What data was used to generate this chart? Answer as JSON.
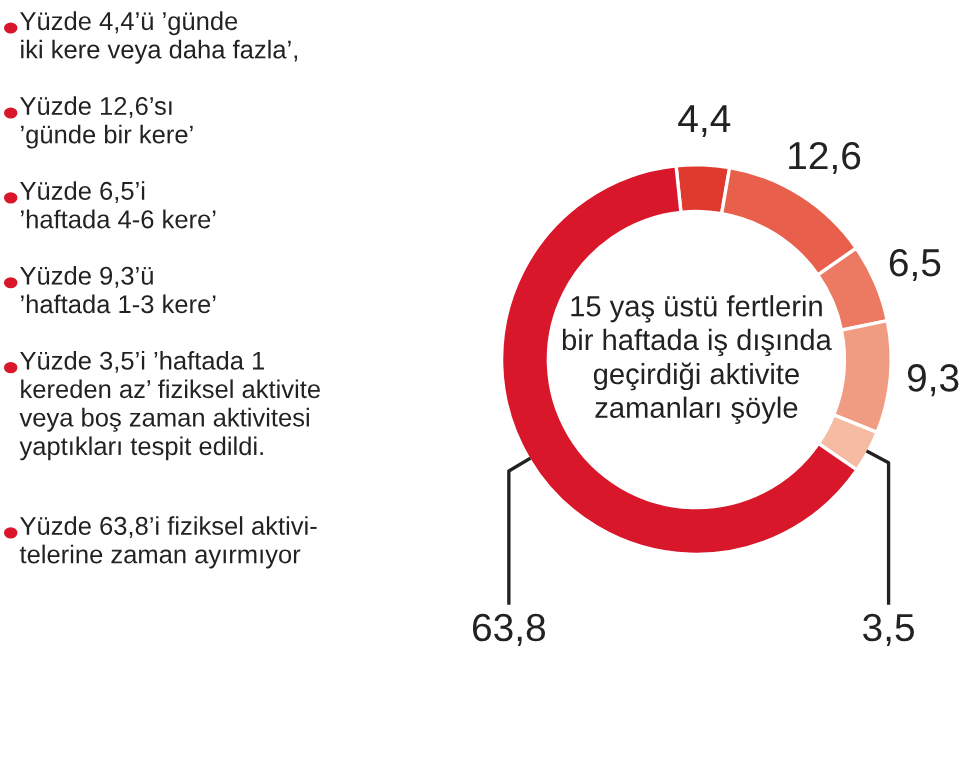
{
  "chart_data": {
    "type": "donut",
    "title": "15 yaş üstü fertlerin\nbir haftada iş dışında\ngeçirdiği aktivite\nzamanları şöyle",
    "categories": [
      null,
      null,
      null,
      null,
      null,
      null
    ],
    "values": [
      4.4,
      12.6,
      6.5,
      9.3,
      3.5,
      63.8
    ],
    "value_labels": [
      "4,4",
      "12,6",
      "6,5",
      "9,3",
      "3,5",
      "63,8"
    ],
    "colors": [
      "#e03a2e",
      "#e8604b",
      "#ec7a62",
      "#f09c83",
      "#f5bba3",
      "#d9172b"
    ],
    "annotations": [
      "Yüzde 4,4’ü ’günde\niki kere veya daha fazla’,",
      "Yüzde 12,6’sı\n’günde bir kere’",
      "Yüzde 6,5’i\n’haftada 4-6 kere’",
      "Yüzde 9,3’ü\n’haftada 1-3 kere’",
      "Yüzde 3,5’i ’haftada 1\nkereden az’ fiziksel aktivite\nveya boş zaman aktivitesi\nyaptıkları tespit edildi.",
      "Yüzde 63,8’i fiziksel aktivi-\ntelerine zaman ayırmıyor"
    ]
  }
}
